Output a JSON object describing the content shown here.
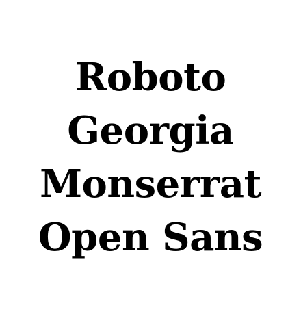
{
  "text_color": "#000000",
  "background_color": "#ffffff",
  "font_names": [
    "Roboto",
    "Georgia",
    "Monserrat",
    "Open Sans"
  ]
}
